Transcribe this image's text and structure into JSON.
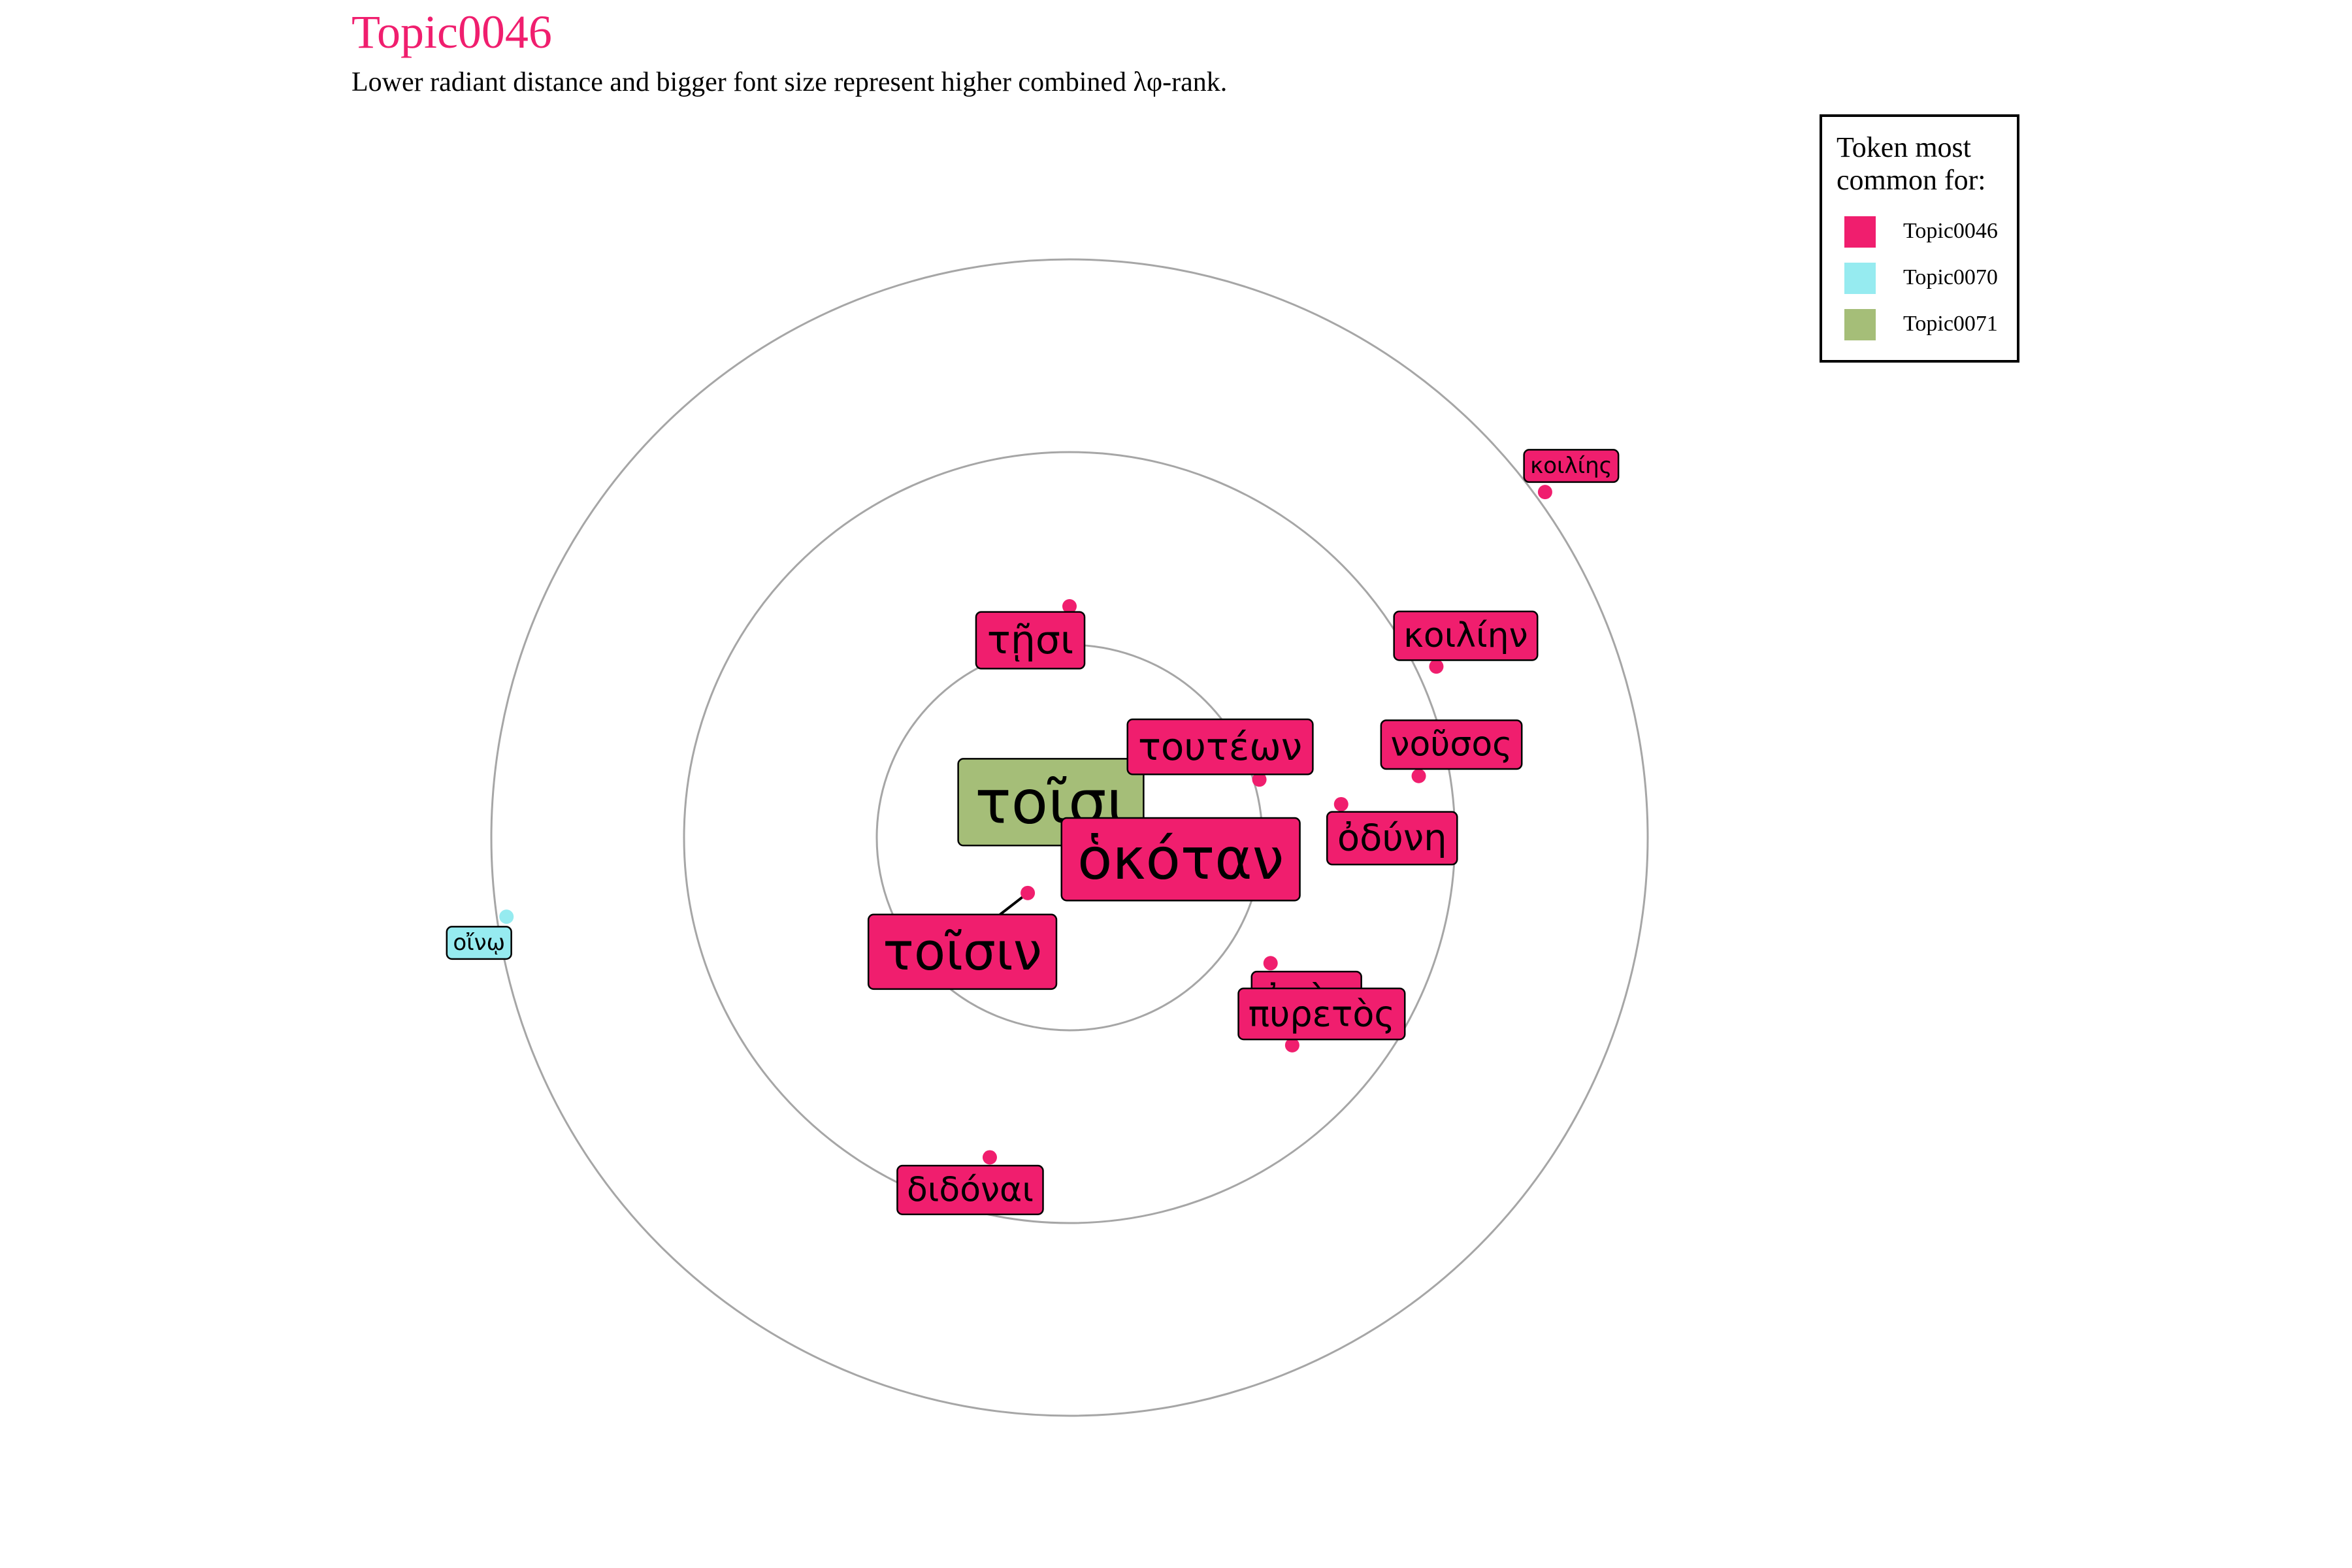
{
  "title": "Topic0046",
  "subtitle": "Lower radiant distance and bigger font size represent higher combined λφ-rank.",
  "colors": {
    "Topic0046": "#f01e6e",
    "Topic0070": "#96ebf0",
    "Topic0071": "#a5be78",
    "ring": "#a6a6a6",
    "title": "#f01e6e"
  },
  "legend": {
    "title": "Token most common for:",
    "items": [
      {
        "label": "Topic0046",
        "color": "#f01e6e"
      },
      {
        "label": "Topic0070",
        "color": "#96ebf0"
      },
      {
        "label": "Topic0071",
        "color": "#a5be78"
      }
    ]
  },
  "chart_data": {
    "type": "scatter",
    "coordinate_system": "polar",
    "rings": [
      1,
      2,
      3
    ],
    "r_max": 3,
    "legend_position": "top-right",
    "grid": true,
    "points": [
      {
        "token": "τοῖσι",
        "topic": "Topic0071",
        "r": 0.17,
        "angle_deg": 112,
        "size": 5.0
      },
      {
        "token": "ὁκόταν",
        "topic": "Topic0046",
        "r": 0.29,
        "angle_deg": 66,
        "size": 4.7
      },
      {
        "token": "τοῖσιν",
        "topic": "Topic0046",
        "r": 0.36,
        "angle_deg": 217,
        "size": 4.3
      },
      {
        "token": "τῇσι",
        "topic": "Topic0046",
        "r": 1.2,
        "angle_deg": 0,
        "size": 3.2
      },
      {
        "token": "τουτέων",
        "topic": "Topic0046",
        "r": 1.03,
        "angle_deg": 73,
        "size": 3.1
      },
      {
        "token": "ἐπὴν",
        "topic": "Topic0046",
        "r": 1.23,
        "angle_deg": 122,
        "size": 3.1
      },
      {
        "token": "ὀδύνη",
        "topic": "Topic0046",
        "r": 1.42,
        "angle_deg": 83,
        "size": 3.0
      },
      {
        "token": "πυρετὸς",
        "topic": "Topic0046",
        "r": 1.58,
        "angle_deg": 133,
        "size": 2.9
      },
      {
        "token": "νοῦσος",
        "topic": "Topic0046",
        "r": 1.84,
        "angle_deg": 80,
        "size": 2.8
      },
      {
        "token": "κοιλίην",
        "topic": "Topic0046",
        "r": 2.1,
        "angle_deg": 65,
        "size": 2.8
      },
      {
        "token": "διδόναι",
        "topic": "Topic0046",
        "r": 1.71,
        "angle_deg": 194,
        "size": 2.8
      },
      {
        "token": "κοιλίης",
        "topic": "Topic0046",
        "r": 3.05,
        "angle_deg": 54,
        "size": 1.8
      },
      {
        "token": "οἴνῳ",
        "topic": "Topic0070",
        "r": 2.95,
        "angle_deg": 262,
        "size": 1.8
      }
    ]
  }
}
